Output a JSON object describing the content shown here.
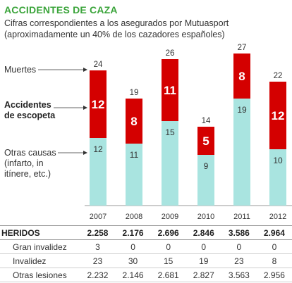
{
  "title": "ACCIDENTES DE CAZA",
  "subtitle_line1": "Cifras correspondientes a los asegurados por Mutuasport",
  "subtitle_line2": "(aproximadamente un 40% de los cazadores españoles)",
  "colors": {
    "accent": "#3aa43a",
    "red": "#d40000",
    "teal": "#a9e4e0"
  },
  "legend": {
    "muertes": "Muertes",
    "escopeta_line1": "Accidentes",
    "escopeta_line2": "de escopeta",
    "otras_line1": "Otras causas",
    "otras_line2": "(infarto, in",
    "otras_line3": "itínere, etc.)"
  },
  "chart_data": {
    "type": "bar",
    "categories": [
      "2007",
      "2008",
      "2009",
      "2010",
      "2011",
      "2012"
    ],
    "series": [
      {
        "name": "Otras causas (infarto, in itínere, etc.)",
        "values": [
          12,
          11,
          15,
          9,
          19,
          10
        ]
      },
      {
        "name": "Accidentes de escopeta",
        "values": [
          12,
          8,
          11,
          5,
          8,
          12
        ]
      }
    ],
    "totals_label": "Muertes",
    "totals": [
      24,
      19,
      26,
      14,
      27,
      22
    ],
    "ylim": [
      0,
      27
    ]
  },
  "table": {
    "header_label": "HERIDOS",
    "header_values": [
      "2.258",
      "2.176",
      "2.696",
      "2.846",
      "3.586",
      "2.964"
    ],
    "rows": [
      {
        "label": "Gran invalidez",
        "values": [
          "3",
          "0",
          "0",
          "0",
          "0",
          "0"
        ]
      },
      {
        "label": "Invalidez",
        "values": [
          "23",
          "30",
          "15",
          "19",
          "23",
          "8"
        ]
      },
      {
        "label": "Otras lesiones",
        "values": [
          "2.232",
          "2.146",
          "2.681",
          "2.827",
          "3.563",
          "2.956"
        ]
      }
    ]
  }
}
